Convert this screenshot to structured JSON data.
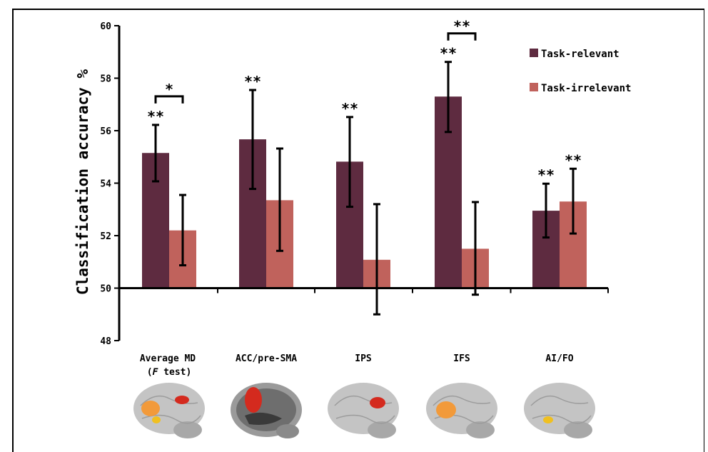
{
  "chart_data": {
    "type": "bar",
    "categories": [
      "Average MD",
      "ACC/pre-SMA",
      "IPS",
      "IFS",
      "AI/FO"
    ],
    "category_sublabels": [
      "(F test)",
      "",
      "",
      "",
      ""
    ],
    "series": [
      {
        "name": "Task-relevant",
        "color": "#5e2b40",
        "values": [
          55.15,
          55.67,
          54.82,
          57.3,
          52.95
        ],
        "err_low": [
          54.07,
          53.78,
          53.1,
          55.95,
          51.93
        ],
        "err_high": [
          56.22,
          57.55,
          56.52,
          58.62,
          53.98
        ],
        "sig": [
          "**",
          "**",
          "**",
          "**",
          "**"
        ]
      },
      {
        "name": "Task-irrelevant",
        "color": "#c0625c",
        "values": [
          52.2,
          53.35,
          51.08,
          51.5,
          53.3
        ],
        "err_low": [
          50.87,
          51.42,
          49.0,
          49.75,
          52.08
        ],
        "err_high": [
          53.55,
          55.32,
          53.2,
          53.28,
          54.55
        ],
        "sig": [
          "",
          "",
          "",
          "",
          "**"
        ]
      }
    ],
    "comparisons": [
      {
        "category_index": 0,
        "label": "*"
      },
      {
        "category_index": 3,
        "label": "**"
      }
    ],
    "ylabel": "Classification accuracy %",
    "ylim": [
      48,
      60
    ],
    "yticks": [
      48,
      50,
      52,
      54,
      56,
      58,
      60
    ],
    "baseline": 50,
    "legend_position": "top-right",
    "grid": false
  },
  "colors": {
    "task_relevant": "#5e2b40",
    "task_irrelevant": "#c0625c",
    "brain_gray": "#b8b8b8",
    "highlight_orange": "#f29a3a",
    "highlight_red": "#d42a1e",
    "highlight_yellow": "#f0c020"
  },
  "brain_images": [
    {
      "icon": "brain-lateral-icon",
      "highlights": [
        "orange",
        "red",
        "yellow"
      ]
    },
    {
      "icon": "brain-medial-icon",
      "highlights": [
        "red"
      ]
    },
    {
      "icon": "brain-lateral-icon",
      "highlights": [
        "red"
      ]
    },
    {
      "icon": "brain-lateral-icon",
      "highlights": [
        "orange"
      ]
    },
    {
      "icon": "brain-lateral-icon",
      "highlights": [
        "yellow"
      ]
    }
  ]
}
